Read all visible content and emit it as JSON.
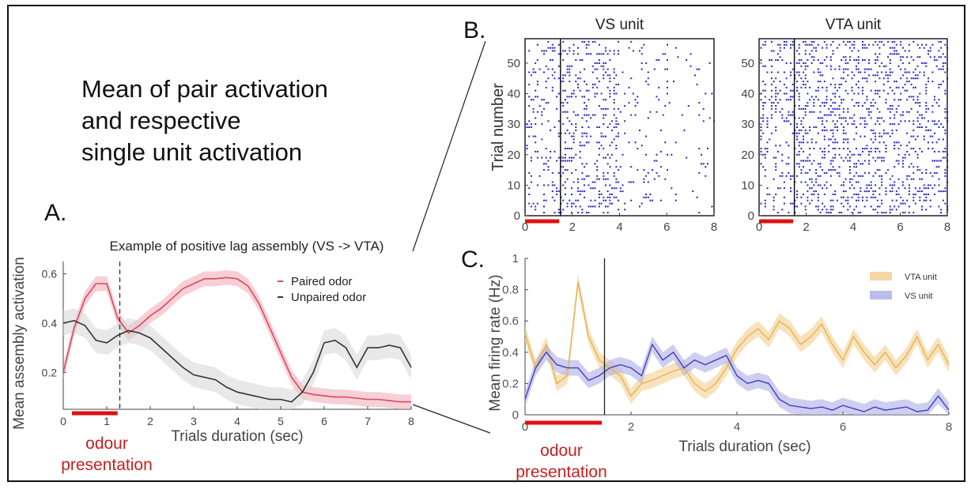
{
  "main_title": [
    "Mean of pair activation",
    "and respective",
    "single unit activation"
  ],
  "panel_labels": {
    "a": "A.",
    "b": "B.",
    "c": "C."
  },
  "odour_label": [
    "odour",
    "presentation"
  ],
  "colors": {
    "paired": "#d94a5c",
    "unpaired": "#333333",
    "vta": "#e8b44c",
    "vs": "#4040c0",
    "raster": "#2525c8",
    "odour_bar": "#e01010"
  },
  "chart_data": [
    {
      "id": "A",
      "type": "line",
      "title": "Example of positive lag assembly (VS -> VTA)",
      "xlabel": "Trials duration (sec)",
      "ylabel": "Mean assembly activation",
      "xlim": [
        0,
        8
      ],
      "ylim": [
        0.05,
        0.65
      ],
      "xticks": [
        0,
        1,
        2,
        3,
        4,
        5,
        6,
        7,
        8
      ],
      "yticks": [
        0.2,
        0.4,
        0.6
      ],
      "ytick_labels": [
        "0.2",
        "0.4",
        "0.6"
      ],
      "vline": 1.3,
      "legend": {
        "position": "top-right",
        "entries": [
          "Paired odor",
          "Unpaired odor"
        ]
      },
      "x": [
        0,
        0.25,
        0.5,
        0.75,
        1,
        1.25,
        1.5,
        1.75,
        2,
        2.25,
        2.5,
        2.75,
        3,
        3.25,
        3.5,
        3.75,
        4,
        4.25,
        4.5,
        4.75,
        5,
        5.25,
        5.5,
        5.75,
        6,
        6.25,
        6.5,
        6.75,
        7,
        7.25,
        7.5,
        7.75,
        8
      ],
      "series": [
        {
          "name": "Paired odor",
          "values": [
            0.2,
            0.38,
            0.5,
            0.56,
            0.56,
            0.42,
            0.36,
            0.39,
            0.43,
            0.46,
            0.5,
            0.54,
            0.56,
            0.58,
            0.58,
            0.585,
            0.58,
            0.55,
            0.48,
            0.38,
            0.28,
            0.18,
            0.12,
            0.11,
            0.105,
            0.1,
            0.1,
            0.095,
            0.09,
            0.09,
            0.085,
            0.08,
            0.08
          ],
          "band": 0.03
        },
        {
          "name": "Unpaired odor",
          "values": [
            0.4,
            0.41,
            0.39,
            0.33,
            0.32,
            0.35,
            0.37,
            0.36,
            0.34,
            0.3,
            0.26,
            0.22,
            0.19,
            0.18,
            0.17,
            0.14,
            0.12,
            0.11,
            0.1,
            0.09,
            0.09,
            0.08,
            0.12,
            0.2,
            0.32,
            0.33,
            0.3,
            0.22,
            0.3,
            0.3,
            0.31,
            0.3,
            0.22
          ],
          "band": 0.05
        }
      ]
    },
    {
      "id": "B1",
      "type": "scatter",
      "title": "VS unit",
      "ylabel": "Trial number",
      "xlim": [
        0,
        8
      ],
      "ylim": [
        0,
        58
      ],
      "xticks": [
        0,
        2,
        4,
        6,
        8
      ],
      "yticks": [
        0,
        10,
        20,
        30,
        40,
        50
      ],
      "vline": 1.5,
      "trials": 57
    },
    {
      "id": "B2",
      "type": "scatter",
      "title": "VTA unit",
      "xlim": [
        0,
        8
      ],
      "ylim": [
        0,
        58
      ],
      "xticks": [
        0,
        2,
        4,
        6,
        8
      ],
      "yticks": [
        0,
        10,
        20,
        30,
        40,
        50
      ],
      "vline": 1.5,
      "trials": 57
    },
    {
      "id": "C",
      "type": "line",
      "xlabel": "Trials duration (sec)",
      "ylabel": "Mean firing rate (Hz)",
      "xlim": [
        0,
        8
      ],
      "ylim": [
        0,
        1
      ],
      "xticks": [
        0,
        2,
        4,
        6,
        8
      ],
      "yticks": [
        0,
        0.2,
        0.4,
        0.6,
        0.8,
        1
      ],
      "ytick_labels": [
        "0",
        "0.2",
        "0.4",
        "0.6",
        "0.8",
        "1"
      ],
      "vline": 1.5,
      "legend": {
        "position": "top-right",
        "entries": [
          "VTA unit",
          "VS unit"
        ]
      },
      "x": [
        0,
        0.2,
        0.4,
        0.6,
        0.8,
        1,
        1.2,
        1.4,
        1.6,
        1.8,
        2,
        2.2,
        2.4,
        2.6,
        2.8,
        3,
        3.2,
        3.4,
        3.6,
        3.8,
        4,
        4.2,
        4.4,
        4.6,
        4.8,
        5,
        5.2,
        5.4,
        5.6,
        5.8,
        6,
        6.2,
        6.4,
        6.6,
        6.8,
        7,
        7.2,
        7.4,
        7.6,
        7.8,
        8
      ],
      "series": [
        {
          "name": "VTA unit",
          "values": [
            0.52,
            0.3,
            0.45,
            0.2,
            0.25,
            0.85,
            0.5,
            0.35,
            0.3,
            0.25,
            0.12,
            0.2,
            0.22,
            0.25,
            0.28,
            0.3,
            0.2,
            0.15,
            0.2,
            0.3,
            0.42,
            0.5,
            0.55,
            0.48,
            0.6,
            0.55,
            0.45,
            0.5,
            0.58,
            0.45,
            0.35,
            0.5,
            0.4,
            0.32,
            0.4,
            0.3,
            0.38,
            0.5,
            0.35,
            0.45,
            0.32
          ],
          "band": 0.05
        },
        {
          "name": "VS unit",
          "values": [
            0.1,
            0.3,
            0.4,
            0.32,
            0.3,
            0.3,
            0.22,
            0.25,
            0.3,
            0.32,
            0.3,
            0.25,
            0.45,
            0.35,
            0.4,
            0.3,
            0.35,
            0.32,
            0.35,
            0.38,
            0.25,
            0.2,
            0.22,
            0.2,
            0.1,
            0.06,
            0.05,
            0.04,
            0.05,
            0.03,
            0.06,
            0.04,
            0.02,
            0.05,
            0.03,
            0.04,
            0.05,
            0.02,
            0.03,
            0.12,
            0.03
          ],
          "band": 0.05
        }
      ]
    }
  ]
}
